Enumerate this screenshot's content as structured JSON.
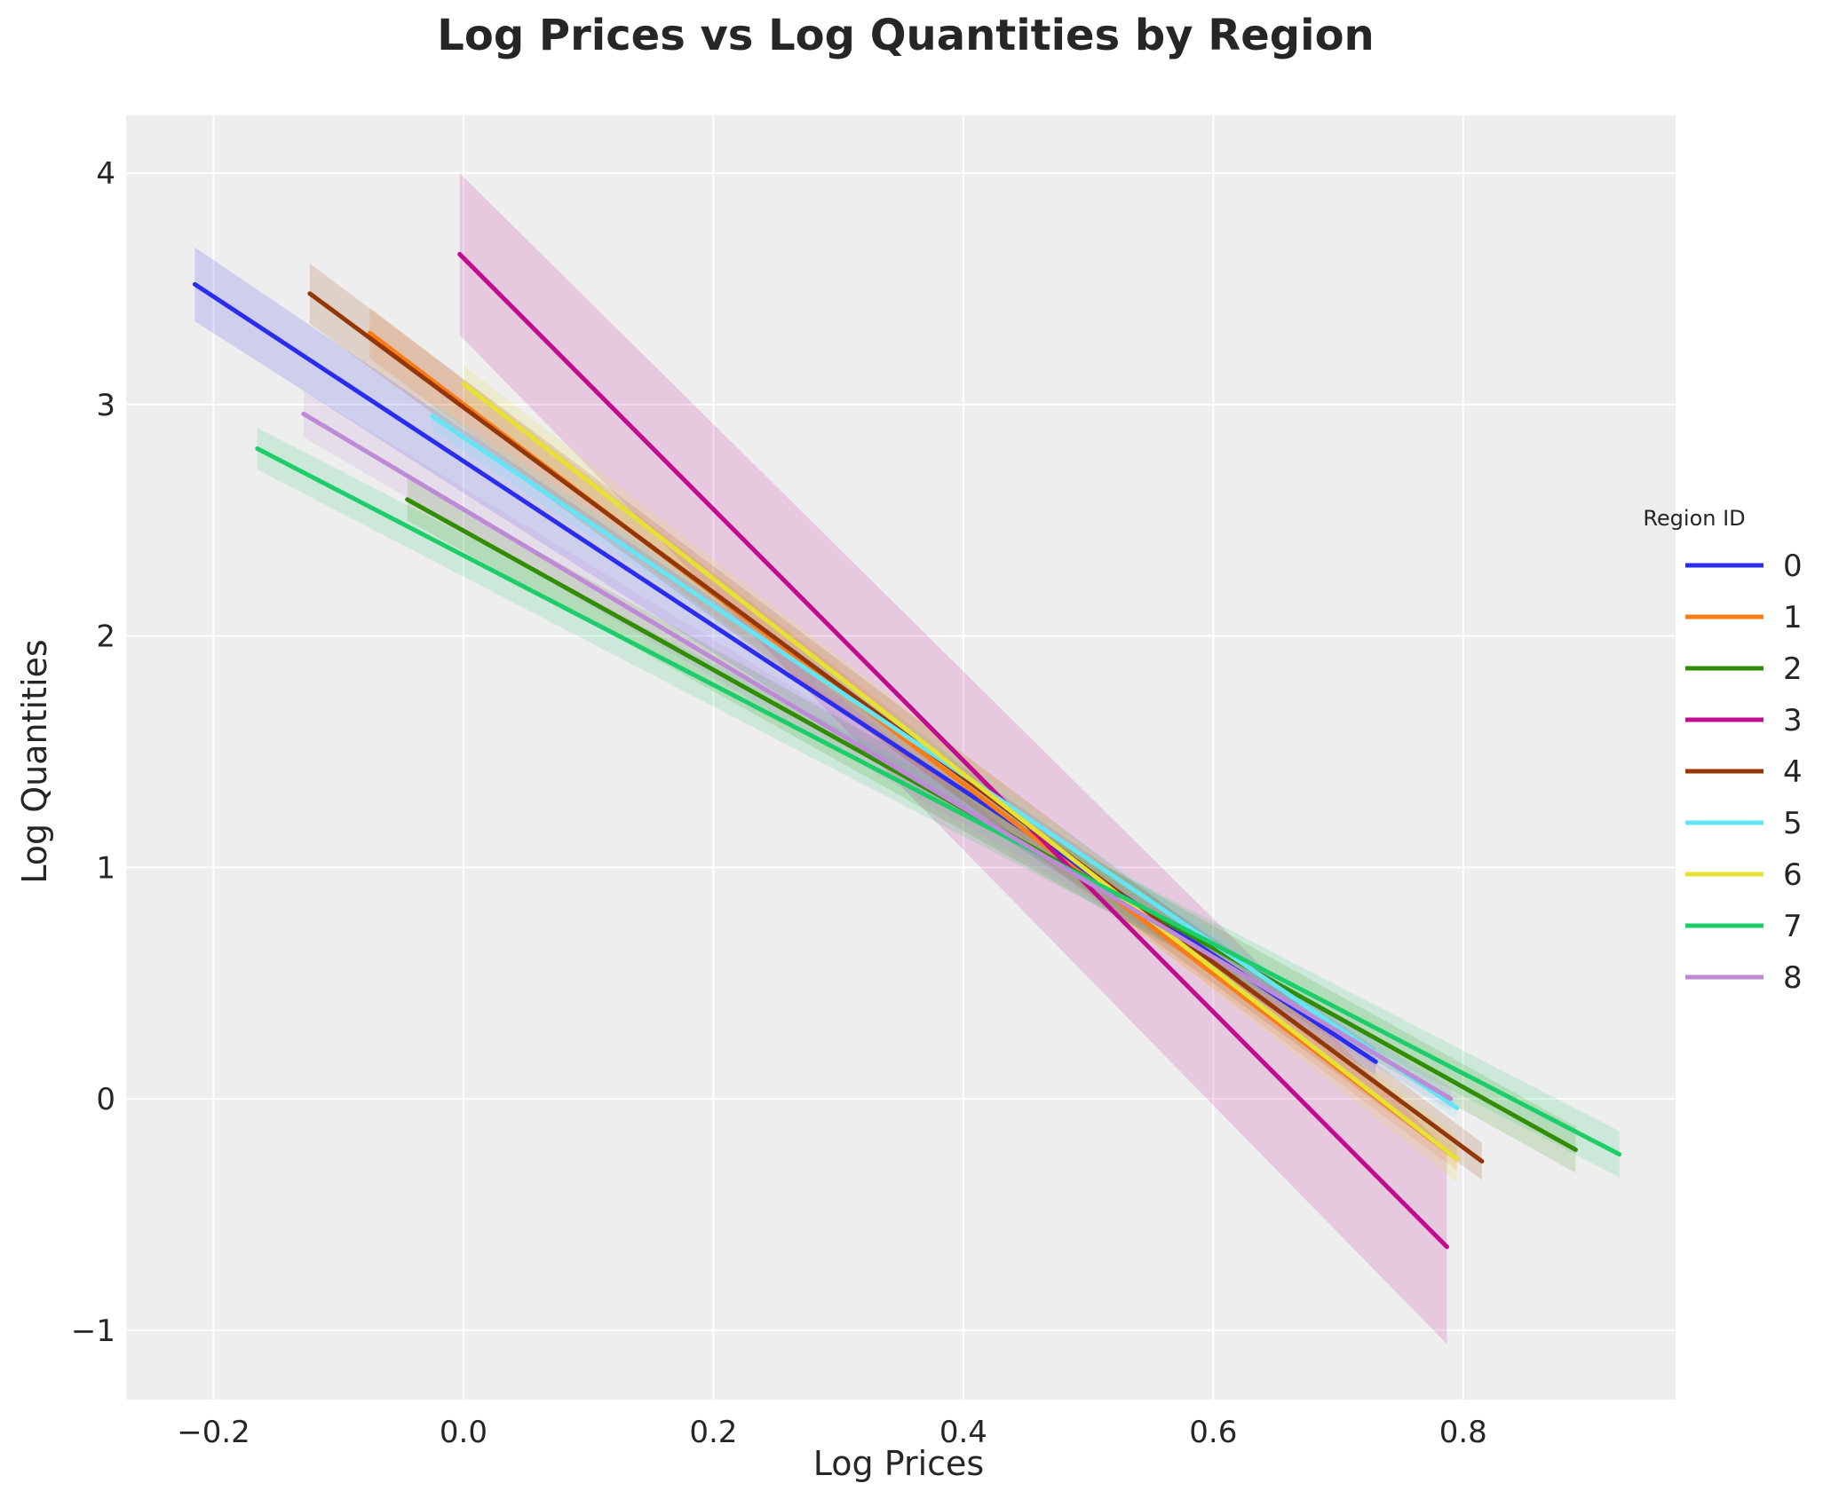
{
  "chart_data": {
    "type": "line",
    "title": "Log Prices vs Log Quantities by Region",
    "xlabel": "Log Prices",
    "ylabel": "Log Quantities",
    "xlim": [
      -0.27,
      0.97
    ],
    "ylim": [
      -1.3,
      4.25
    ],
    "xticks": [
      -0.2,
      0.0,
      0.2,
      0.4,
      0.6,
      0.8
    ],
    "xtick_labels": [
      "−0.2",
      "0.0",
      "0.2",
      "0.4",
      "0.6",
      "0.8"
    ],
    "yticks": [
      -1,
      0,
      1,
      2,
      3,
      4
    ],
    "ytick_labels": [
      "−1",
      "0",
      "1",
      "2",
      "3",
      "4"
    ],
    "grid": true,
    "background": "#eeeeee",
    "legend": {
      "title": "Region ID",
      "placement": "right-outside"
    },
    "series": [
      {
        "name": "0",
        "color": "#2a2eec",
        "x": [
          -0.215,
          0.73
        ],
        "y": [
          3.52,
          0.16
        ],
        "band": [
          0.16,
          0.06
        ]
      },
      {
        "name": "1",
        "color": "#fa7c17",
        "x": [
          -0.075,
          0.795
        ],
        "y": [
          3.31,
          -0.26
        ],
        "band": [
          0.11,
          0.05
        ]
      },
      {
        "name": "2",
        "color": "#328c06",
        "x": [
          -0.045,
          0.89
        ],
        "y": [
          2.59,
          -0.22
        ],
        "band": [
          0.09,
          0.1
        ]
      },
      {
        "name": "3",
        "color": "#c10c90",
        "x": [
          -0.003,
          0.787
        ],
        "y": [
          3.65,
          -0.64
        ],
        "band": [
          0.35,
          0.42
        ]
      },
      {
        "name": "4",
        "color": "#933708",
        "x": [
          -0.123,
          0.815
        ],
        "y": [
          3.48,
          -0.27
        ],
        "band": [
          0.13,
          0.08
        ]
      },
      {
        "name": "5",
        "color": "#65e5f3",
        "x": [
          -0.025,
          0.795
        ],
        "y": [
          2.95,
          -0.04
        ],
        "band": [
          0.06,
          0.05
        ]
      },
      {
        "name": "6",
        "color": "#e6e135",
        "x": [
          0.0,
          0.795
        ],
        "y": [
          3.09,
          -0.26
        ],
        "band": [
          0.08,
          0.1
        ]
      },
      {
        "name": "7",
        "color": "#1ccd6a",
        "x": [
          -0.165,
          0.925
        ],
        "y": [
          2.81,
          -0.24
        ],
        "band": [
          0.09,
          0.1
        ]
      },
      {
        "name": "8",
        "color": "#bd8ad5",
        "x": [
          -0.128,
          0.79
        ],
        "y": [
          2.96,
          0.0
        ],
        "band": [
          0.1,
          0.05
        ]
      }
    ]
  }
}
